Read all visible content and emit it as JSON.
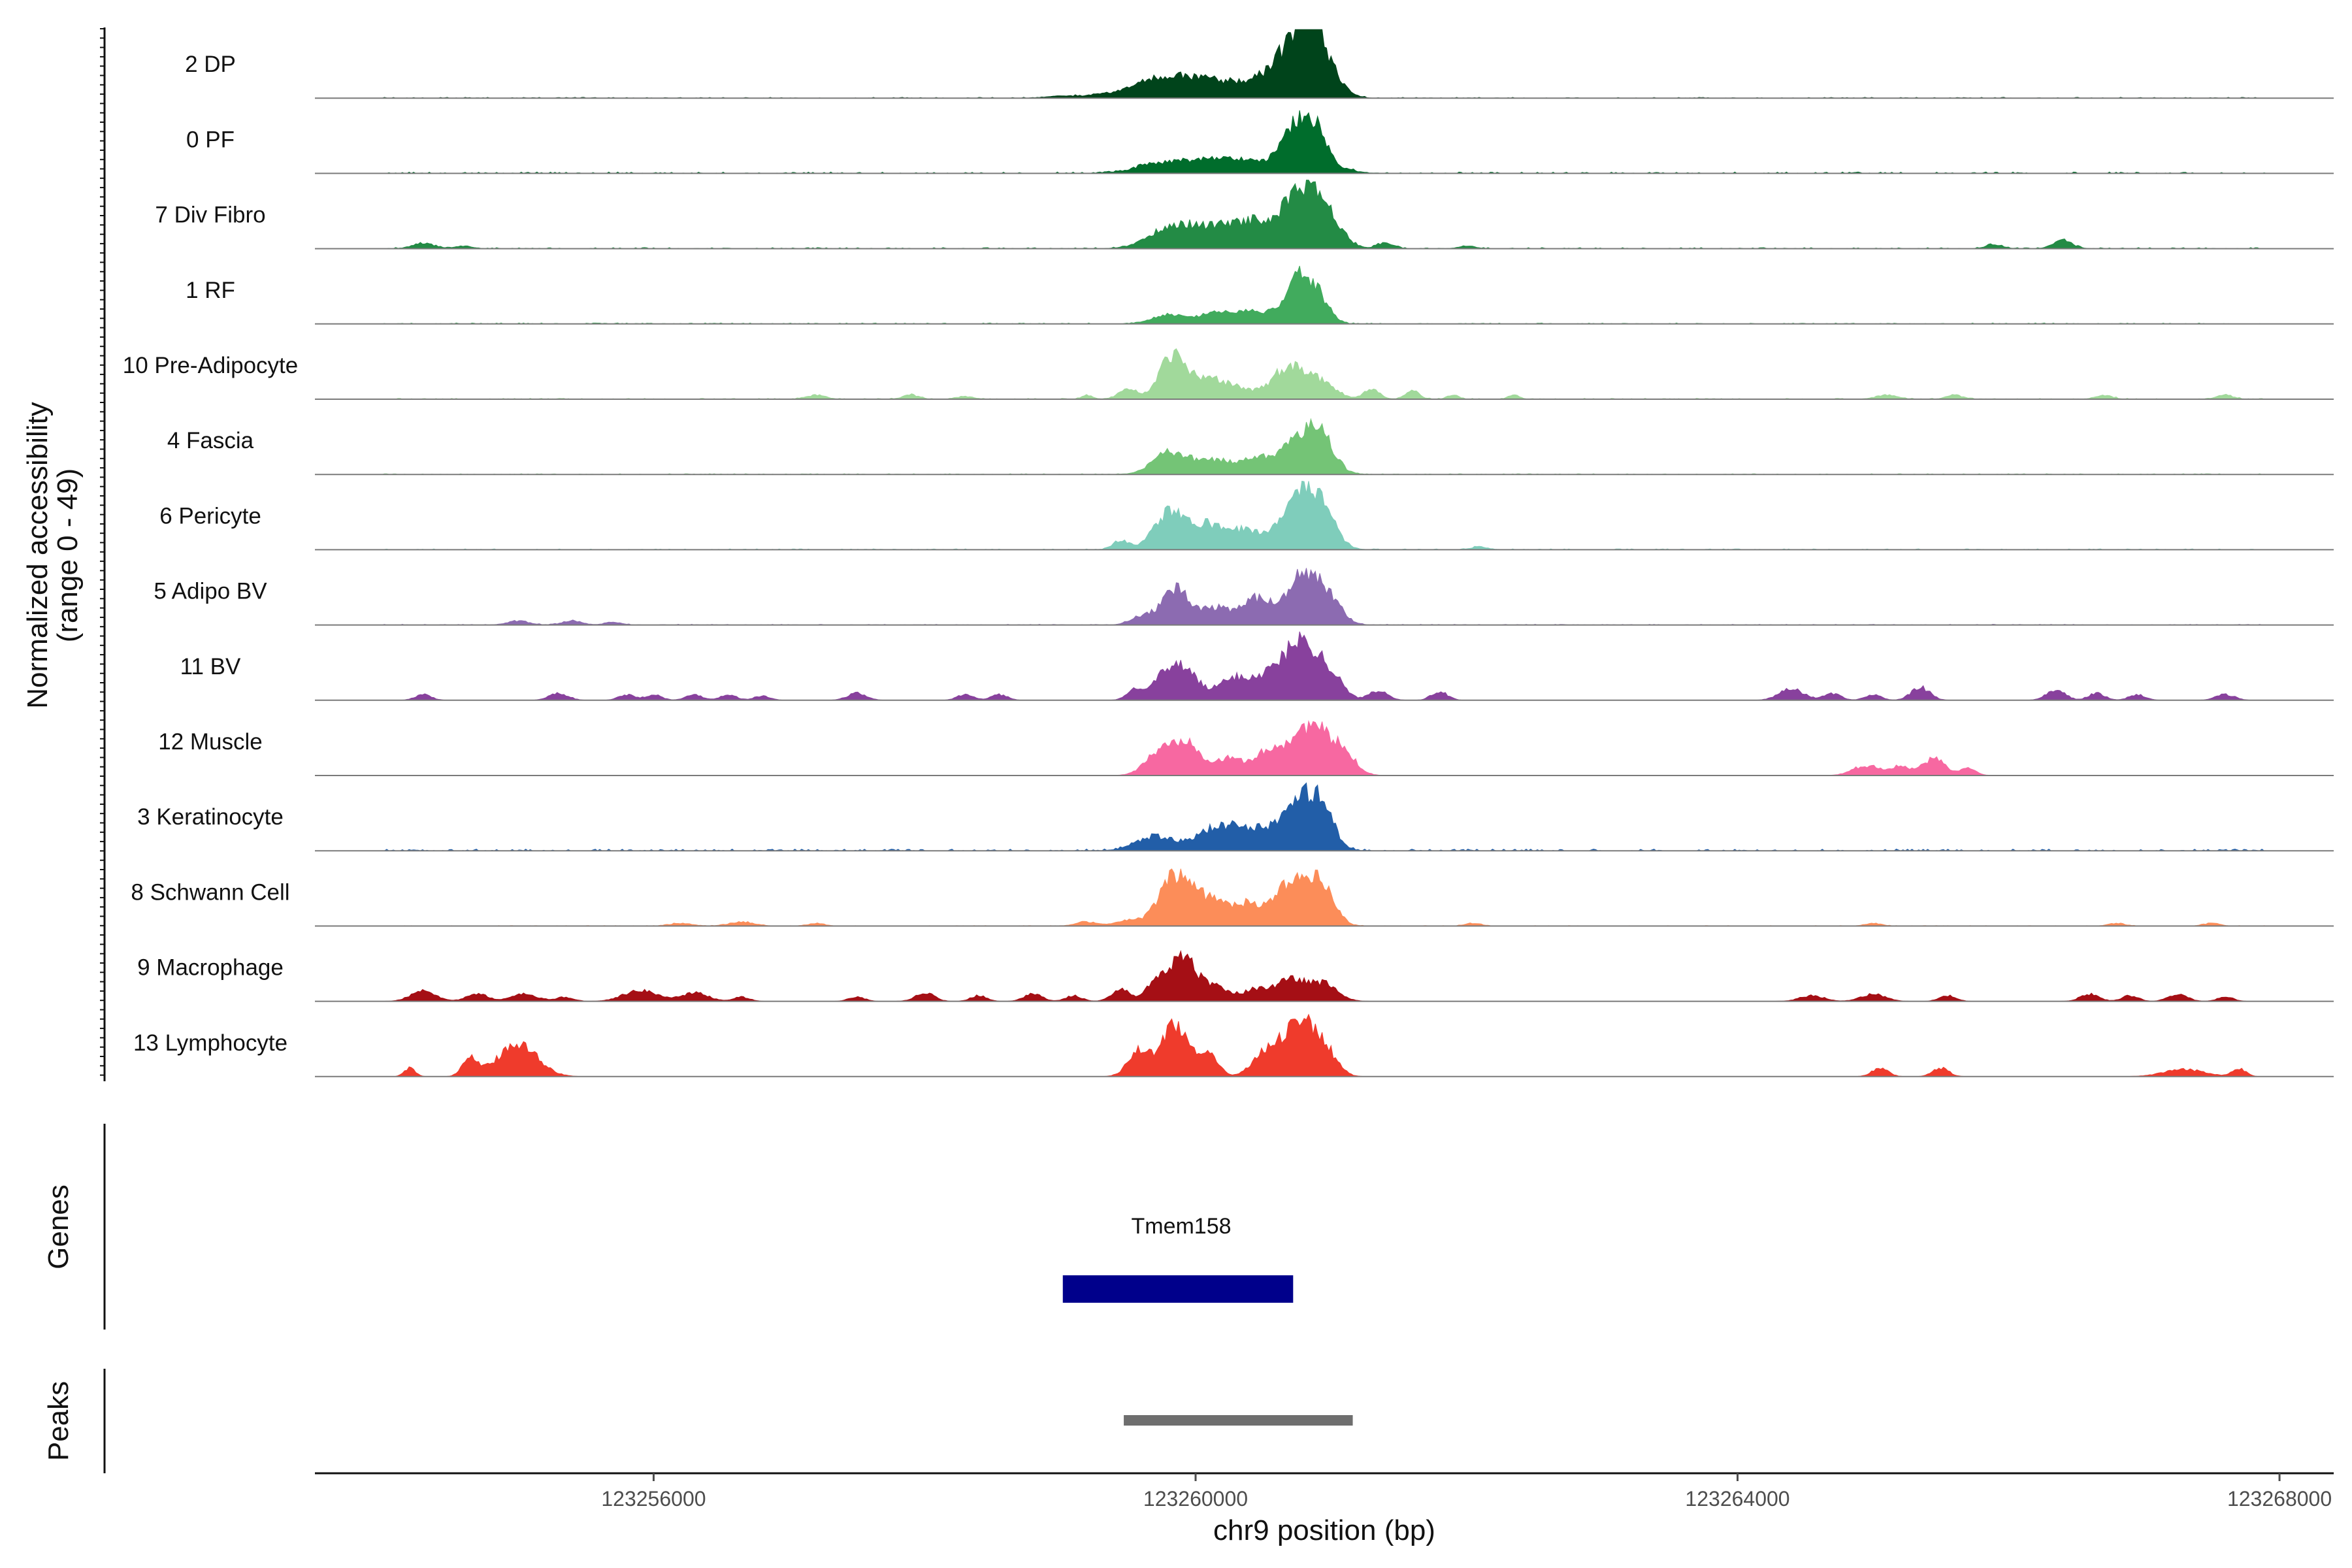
{
  "chart_data": {
    "type": "area",
    "description_axis": {
      "ylabel": "Normalized accessibility",
      "ylabel_range": "(range 0 - 49)",
      "ylim": [
        0,
        49
      ],
      "xlabel": "chr9 position (bp)",
      "xlim": [
        123253500,
        123268400
      ],
      "xticks": [
        123256000,
        123260000,
        123264000,
        123268000
      ],
      "xtick_labels": [
        "123256000",
        "123260000",
        "123264000",
        "123268000"
      ]
    },
    "series": [
      {
        "name": "2 DP",
        "color": "#00441b",
        "noise": 0.6,
        "peaks": [
          [
            123259020,
            110,
            1.5
          ],
          [
            123259300,
            120,
            2
          ],
          [
            123259700,
            180,
            12
          ],
          [
            123259950,
            160,
            8
          ],
          [
            123260250,
            200,
            10
          ],
          [
            123260550,
            150,
            7
          ],
          [
            123260780,
            150,
            42
          ],
          [
            123260880,
            90,
            22
          ],
          [
            123261050,
            80,
            5
          ]
        ]
      },
      {
        "name": "0 PF",
        "color": "#006d2c",
        "noise": 1.0,
        "peaks": [
          [
            123259700,
            160,
            4
          ],
          [
            123260200,
            320,
            11
          ],
          [
            123260780,
            120,
            36
          ],
          [
            123260920,
            70,
            12
          ],
          [
            123261100,
            100,
            2
          ]
        ]
      },
      {
        "name": "7 Div Fibro",
        "color": "#238b45",
        "noise": 0.8,
        "peaks": [
          [
            123254300,
            80,
            4
          ],
          [
            123254600,
            60,
            2
          ],
          [
            123259800,
            160,
            10
          ],
          [
            123260100,
            220,
            14
          ],
          [
            123260450,
            150,
            15
          ],
          [
            123260800,
            140,
            44
          ],
          [
            123261000,
            100,
            12
          ],
          [
            123261400,
            60,
            4
          ],
          [
            123262000,
            60,
            2
          ],
          [
            123265900,
            60,
            3
          ],
          [
            123266400,
            70,
            6
          ]
        ]
      },
      {
        "name": "1 RF",
        "color": "#41ab5d",
        "noise": 0.7,
        "peaks": [
          [
            123259800,
            120,
            6
          ],
          [
            123260200,
            180,
            8
          ],
          [
            123260500,
            140,
            6
          ],
          [
            123260780,
            100,
            35
          ],
          [
            123260950,
            70,
            10
          ]
        ]
      },
      {
        "name": "10 Pre-Adipocyte",
        "color": "#a1d99b",
        "noise": 0.6,
        "peaks": [
          [
            123257200,
            70,
            3
          ],
          [
            123257900,
            60,
            3
          ],
          [
            123258300,
            60,
            2
          ],
          [
            123259200,
            40,
            3
          ],
          [
            123259500,
            70,
            7
          ],
          [
            123259820,
            90,
            28
          ],
          [
            123260050,
            150,
            14
          ],
          [
            123260300,
            120,
            6
          ],
          [
            123260700,
            130,
            24
          ],
          [
            123260950,
            100,
            9
          ],
          [
            123261300,
            60,
            7
          ],
          [
            123261600,
            50,
            6
          ],
          [
            123261900,
            40,
            3
          ],
          [
            123262350,
            40,
            3
          ],
          [
            123265100,
            80,
            3
          ],
          [
            123265600,
            60,
            3
          ],
          [
            123266700,
            60,
            3
          ],
          [
            123267600,
            60,
            3
          ]
        ]
      },
      {
        "name": "4 Fascia",
        "color": "#74c476",
        "noise": 0.5,
        "peaks": [
          [
            123259800,
            120,
            14
          ],
          [
            123260150,
            200,
            10
          ],
          [
            123260500,
            120,
            9
          ],
          [
            123260800,
            130,
            28
          ],
          [
            123260950,
            90,
            14
          ]
        ]
      },
      {
        "name": "6 Pericyte",
        "color": "#7fcdbb",
        "noise": 0.6,
        "peaks": [
          [
            123259450,
            60,
            6
          ],
          [
            123259800,
            110,
            26
          ],
          [
            123260050,
            110,
            14
          ],
          [
            123260350,
            180,
            14
          ],
          [
            123260780,
            120,
            42
          ],
          [
            123260950,
            100,
            18
          ],
          [
            123262100,
            60,
            2
          ]
        ]
      },
      {
        "name": "5 Adipo BV",
        "color": "#8c6bb1",
        "noise": 0.5,
        "peaks": [
          [
            123255000,
            80,
            3
          ],
          [
            123255400,
            70,
            3
          ],
          [
            123255700,
            60,
            2
          ],
          [
            123259600,
            80,
            6
          ],
          [
            123259850,
            100,
            26
          ],
          [
            123260150,
            120,
            12
          ],
          [
            123260450,
            100,
            18
          ],
          [
            123260800,
            130,
            36
          ],
          [
            123261000,
            90,
            12
          ]
        ]
      },
      {
        "name": "11 BV",
        "color": "#88419d",
        "noise": 0.0,
        "peaks": [
          [
            123254300,
            60,
            4
          ],
          [
            123255300,
            70,
            5
          ],
          [
            123255800,
            60,
            4
          ],
          [
            123256000,
            60,
            4
          ],
          [
            123256300,
            60,
            4
          ],
          [
            123256550,
            60,
            4
          ],
          [
            123256800,
            60,
            3
          ],
          [
            123257500,
            70,
            5
          ],
          [
            123258300,
            60,
            4
          ],
          [
            123258550,
            60,
            4
          ],
          [
            123259550,
            60,
            6
          ],
          [
            123259800,
            120,
            20
          ],
          [
            123259950,
            80,
            12
          ],
          [
            123260300,
            140,
            16
          ],
          [
            123260600,
            120,
            18
          ],
          [
            123260800,
            110,
            38
          ],
          [
            123261000,
            90,
            16
          ],
          [
            123261350,
            70,
            7
          ],
          [
            123261800,
            60,
            6
          ],
          [
            123264400,
            90,
            8
          ],
          [
            123264700,
            60,
            5
          ],
          [
            123265000,
            60,
            4
          ],
          [
            123265350,
            70,
            9
          ],
          [
            123266350,
            70,
            7
          ],
          [
            123266650,
            60,
            5
          ],
          [
            123266950,
            60,
            4
          ],
          [
            123267600,
            70,
            4
          ]
        ]
      },
      {
        "name": "12 Muscle",
        "color": "#f768a1",
        "noise": 0.0,
        "peaks": [
          [
            123259750,
            110,
            18
          ],
          [
            123259950,
            90,
            22
          ],
          [
            123260250,
            120,
            12
          ],
          [
            123260550,
            100,
            16
          ],
          [
            123260850,
            140,
            36
          ],
          [
            123261100,
            90,
            12
          ],
          [
            123264950,
            100,
            7
          ],
          [
            123265200,
            80,
            6
          ],
          [
            123265450,
            80,
            12
          ],
          [
            123265700,
            60,
            5
          ]
        ]
      },
      {
        "name": "3 Keratinocyte",
        "color": "#225ea8",
        "noise": 1.2,
        "peaks": [
          [
            123259700,
            140,
            10
          ],
          [
            123260200,
            170,
            18
          ],
          [
            123260500,
            120,
            10
          ],
          [
            123260800,
            130,
            38
          ],
          [
            123260950,
            80,
            14
          ]
        ]
      },
      {
        "name": "8 Schwann Cell",
        "color": "#fc8d59",
        "noise": 0.3,
        "peaks": [
          [
            123256200,
            80,
            2
          ],
          [
            123256650,
            90,
            3
          ],
          [
            123257200,
            60,
            2
          ],
          [
            123259200,
            80,
            3
          ],
          [
            123259500,
            80,
            4
          ],
          [
            123259850,
            120,
            34
          ],
          [
            123260100,
            140,
            16
          ],
          [
            123260400,
            120,
            14
          ],
          [
            123260750,
            130,
            36
          ],
          [
            123260950,
            90,
            18
          ],
          [
            123262050,
            60,
            2
          ],
          [
            123265000,
            60,
            2
          ],
          [
            123266800,
            60,
            2
          ],
          [
            123267500,
            60,
            2
          ]
        ]
      },
      {
        "name": "9 Macrophage",
        "color": "#a50f15",
        "noise": 0.0,
        "peaks": [
          [
            123254300,
            90,
            8
          ],
          [
            123254700,
            80,
            5
          ],
          [
            123255050,
            100,
            5
          ],
          [
            123255350,
            60,
            3
          ],
          [
            123255900,
            120,
            8
          ],
          [
            123256300,
            100,
            6
          ],
          [
            123256650,
            60,
            3
          ],
          [
            123257500,
            60,
            3
          ],
          [
            123258000,
            70,
            6
          ],
          [
            123258400,
            60,
            4
          ],
          [
            123258800,
            70,
            5
          ],
          [
            123259100,
            60,
            4
          ],
          [
            123259450,
            70,
            8
          ],
          [
            123259700,
            70,
            12
          ],
          [
            123259900,
            100,
            30
          ],
          [
            123260150,
            120,
            10
          ],
          [
            123260450,
            80,
            8
          ],
          [
            123260700,
            110,
            16
          ],
          [
            123260950,
            100,
            12
          ],
          [
            123264550,
            90,
            4
          ],
          [
            123265000,
            90,
            5
          ],
          [
            123265550,
            60,
            4
          ],
          [
            123266600,
            70,
            5
          ],
          [
            123266900,
            60,
            4
          ],
          [
            123267250,
            70,
            5
          ],
          [
            123267600,
            60,
            3
          ]
        ]
      },
      {
        "name": "13 Lymphocyte",
        "color": "#ef3b2c",
        "noise": 0.0,
        "peaks": [
          [
            123254200,
            40,
            6
          ],
          [
            123254650,
            60,
            12
          ],
          [
            123255000,
            140,
            24
          ],
          [
            123259580,
            80,
            18
          ],
          [
            123259850,
            100,
            38
          ],
          [
            123260100,
            70,
            14
          ],
          [
            123260500,
            90,
            16
          ],
          [
            123260750,
            110,
            40
          ],
          [
            123260950,
            90,
            18
          ],
          [
            123265050,
            60,
            6
          ],
          [
            123265500,
            60,
            6
          ],
          [
            123267300,
            150,
            5
          ],
          [
            123267700,
            50,
            6
          ]
        ]
      }
    ],
    "genes": [
      {
        "name": "Tmem158",
        "start": 123259020,
        "end": 123260720,
        "color": "#00008b"
      }
    ],
    "peaks_track": [
      {
        "start": 123259470,
        "end": 123261160,
        "color": "#6e6e6e"
      }
    ],
    "genes_title": "Genes",
    "peaks_title": "Peaks"
  }
}
